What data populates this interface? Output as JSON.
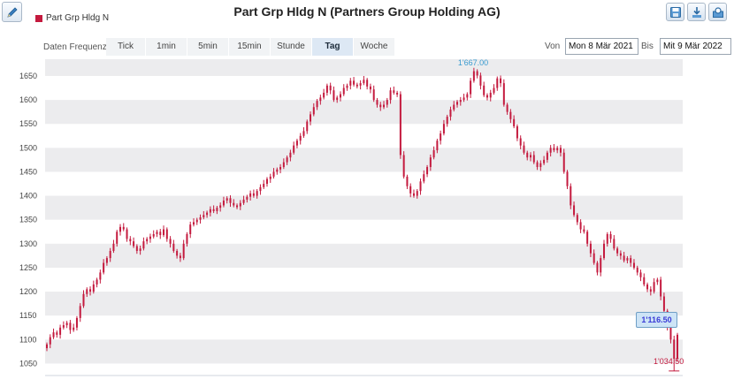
{
  "toolbar": {
    "edit_icon": "pencil-icon",
    "tools": [
      {
        "name": "save-image-icon"
      },
      {
        "name": "download-icon"
      },
      {
        "name": "zoom-icon"
      }
    ]
  },
  "legend": {
    "label": "Part Grp Hldg N",
    "color": "#c41a3e"
  },
  "title": "Part Grp Hldg N (Partners Group Holding AG)",
  "frequency": {
    "label": "Daten Frequenz",
    "tabs": [
      "Tick",
      "1min",
      "5min",
      "15min",
      "Stunde",
      "Tag",
      "Woche"
    ],
    "active": "Tag"
  },
  "range": {
    "from_label": "Von",
    "from_value": "Mon 8 Mär 2021",
    "to_label": "Bis",
    "to_value": "Mit 9 Mär 2022"
  },
  "chart_data": {
    "type": "candlestick",
    "title": "Part Grp Hldg N (Partners Group Holding AG)",
    "ylim": [
      1025,
      1685
    ],
    "yticks": [
      1050,
      1100,
      1150,
      1200,
      1250,
      1300,
      1350,
      1400,
      1450,
      1500,
      1550,
      1600,
      1650
    ],
    "ytick_labels": [
      "1050",
      "1100",
      "1150",
      "1200",
      "1250",
      "1300",
      "1350",
      "1400",
      "1450",
      "1500",
      "1550",
      "1600",
      "1650"
    ],
    "grid": "alternating bands",
    "color": "#c41a3e",
    "annotations": {
      "max": "1'667.00",
      "min": "1'034.50",
      "last": "1'116.50"
    },
    "max_value": 1667.0,
    "min_value": 1034.5,
    "last_value": 1116.5,
    "series": [
      {
        "values": [
          1090,
          1105,
          1115,
          1110,
          1125,
          1130,
          1135,
          1120,
          1125,
          1145,
          1170,
          1195,
          1205,
          1200,
          1215,
          1225,
          1240,
          1260,
          1270,
          1285,
          1300,
          1325,
          1335,
          1330,
          1310,
          1305,
          1295,
          1285,
          1290,
          1305,
          1310,
          1315,
          1320,
          1325,
          1318,
          1330,
          1310,
          1300,
          1285,
          1275,
          1270,
          1300,
          1320,
          1340,
          1345,
          1350,
          1355,
          1360,
          1365,
          1372,
          1368,
          1375,
          1380,
          1390,
          1395,
          1385,
          1380,
          1378,
          1385,
          1392,
          1398,
          1405,
          1400,
          1410,
          1418,
          1425,
          1435,
          1440,
          1450,
          1455,
          1460,
          1470,
          1480,
          1490,
          1505,
          1515,
          1525,
          1535,
          1555,
          1570,
          1585,
          1598,
          1605,
          1615,
          1630,
          1620,
          1600,
          1605,
          1612,
          1625,
          1630,
          1640,
          1632,
          1630,
          1635,
          1642,
          1628,
          1622,
          1600,
          1590,
          1585,
          1590,
          1600,
          1620,
          1615,
          1612,
          1485,
          1440,
          1420,
          1405,
          1400,
          1410,
          1430,
          1445,
          1460,
          1480,
          1495,
          1515,
          1530,
          1550,
          1565,
          1580,
          1590,
          1596,
          1600,
          1605,
          1612,
          1640,
          1660,
          1651,
          1630,
          1610,
          1605,
          1615,
          1625,
          1645,
          1635,
          1590,
          1575,
          1560,
          1545,
          1520,
          1505,
          1490,
          1480,
          1485,
          1470,
          1460,
          1468,
          1475,
          1490,
          1500,
          1495,
          1500,
          1490,
          1450,
          1420,
          1380,
          1360,
          1345,
          1330,
          1325,
          1300,
          1280,
          1260,
          1240,
          1270,
          1300,
          1320,
          1310,
          1290,
          1280,
          1275,
          1265,
          1270,
          1260,
          1250,
          1240,
          1230,
          1215,
          1205,
          1200,
          1220,
          1225,
          1190,
          1160,
          1125,
          1100,
          1060,
          1110
        ]
      }
    ]
  }
}
